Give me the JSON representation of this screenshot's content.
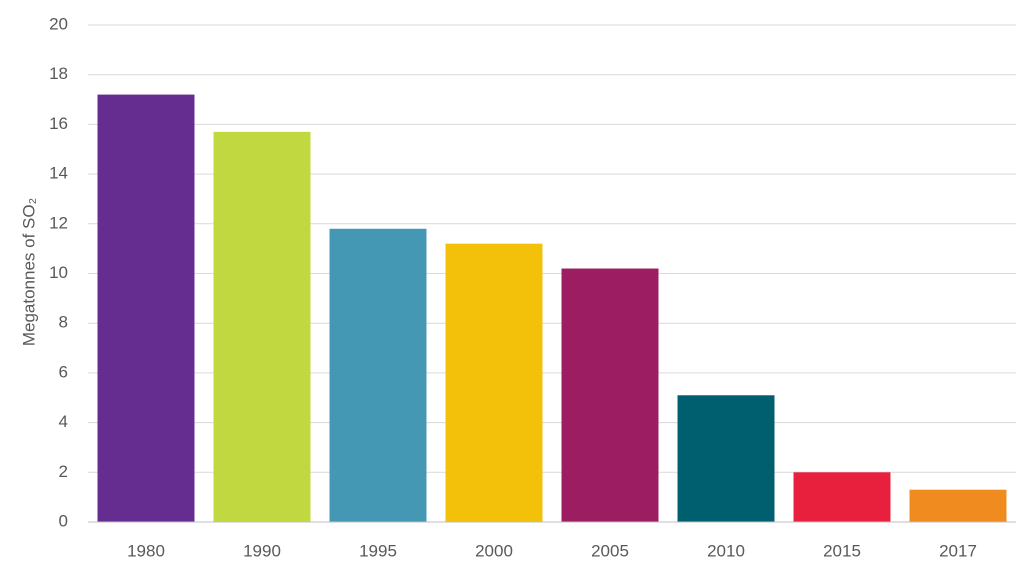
{
  "chart_data": {
    "type": "bar",
    "y_label": "Megatonnes of SO₂",
    "categories": [
      "1980",
      "1990",
      "1995",
      "2000",
      "2005",
      "2010",
      "2015",
      "2017"
    ],
    "values": [
      17.2,
      15.7,
      11.8,
      11.2,
      10.2,
      5.1,
      2.0,
      1.3
    ],
    "colors": [
      "#662d91",
      "#c2d840",
      "#4598b4",
      "#f4c10a",
      "#9c1d61",
      "#005f6e",
      "#e8203e",
      "#ef8b1f"
    ],
    "ylim": [
      0,
      20
    ],
    "yticks": [
      0,
      2,
      4,
      6,
      8,
      10,
      12,
      14,
      16,
      18,
      20
    ],
    "grid": true
  }
}
